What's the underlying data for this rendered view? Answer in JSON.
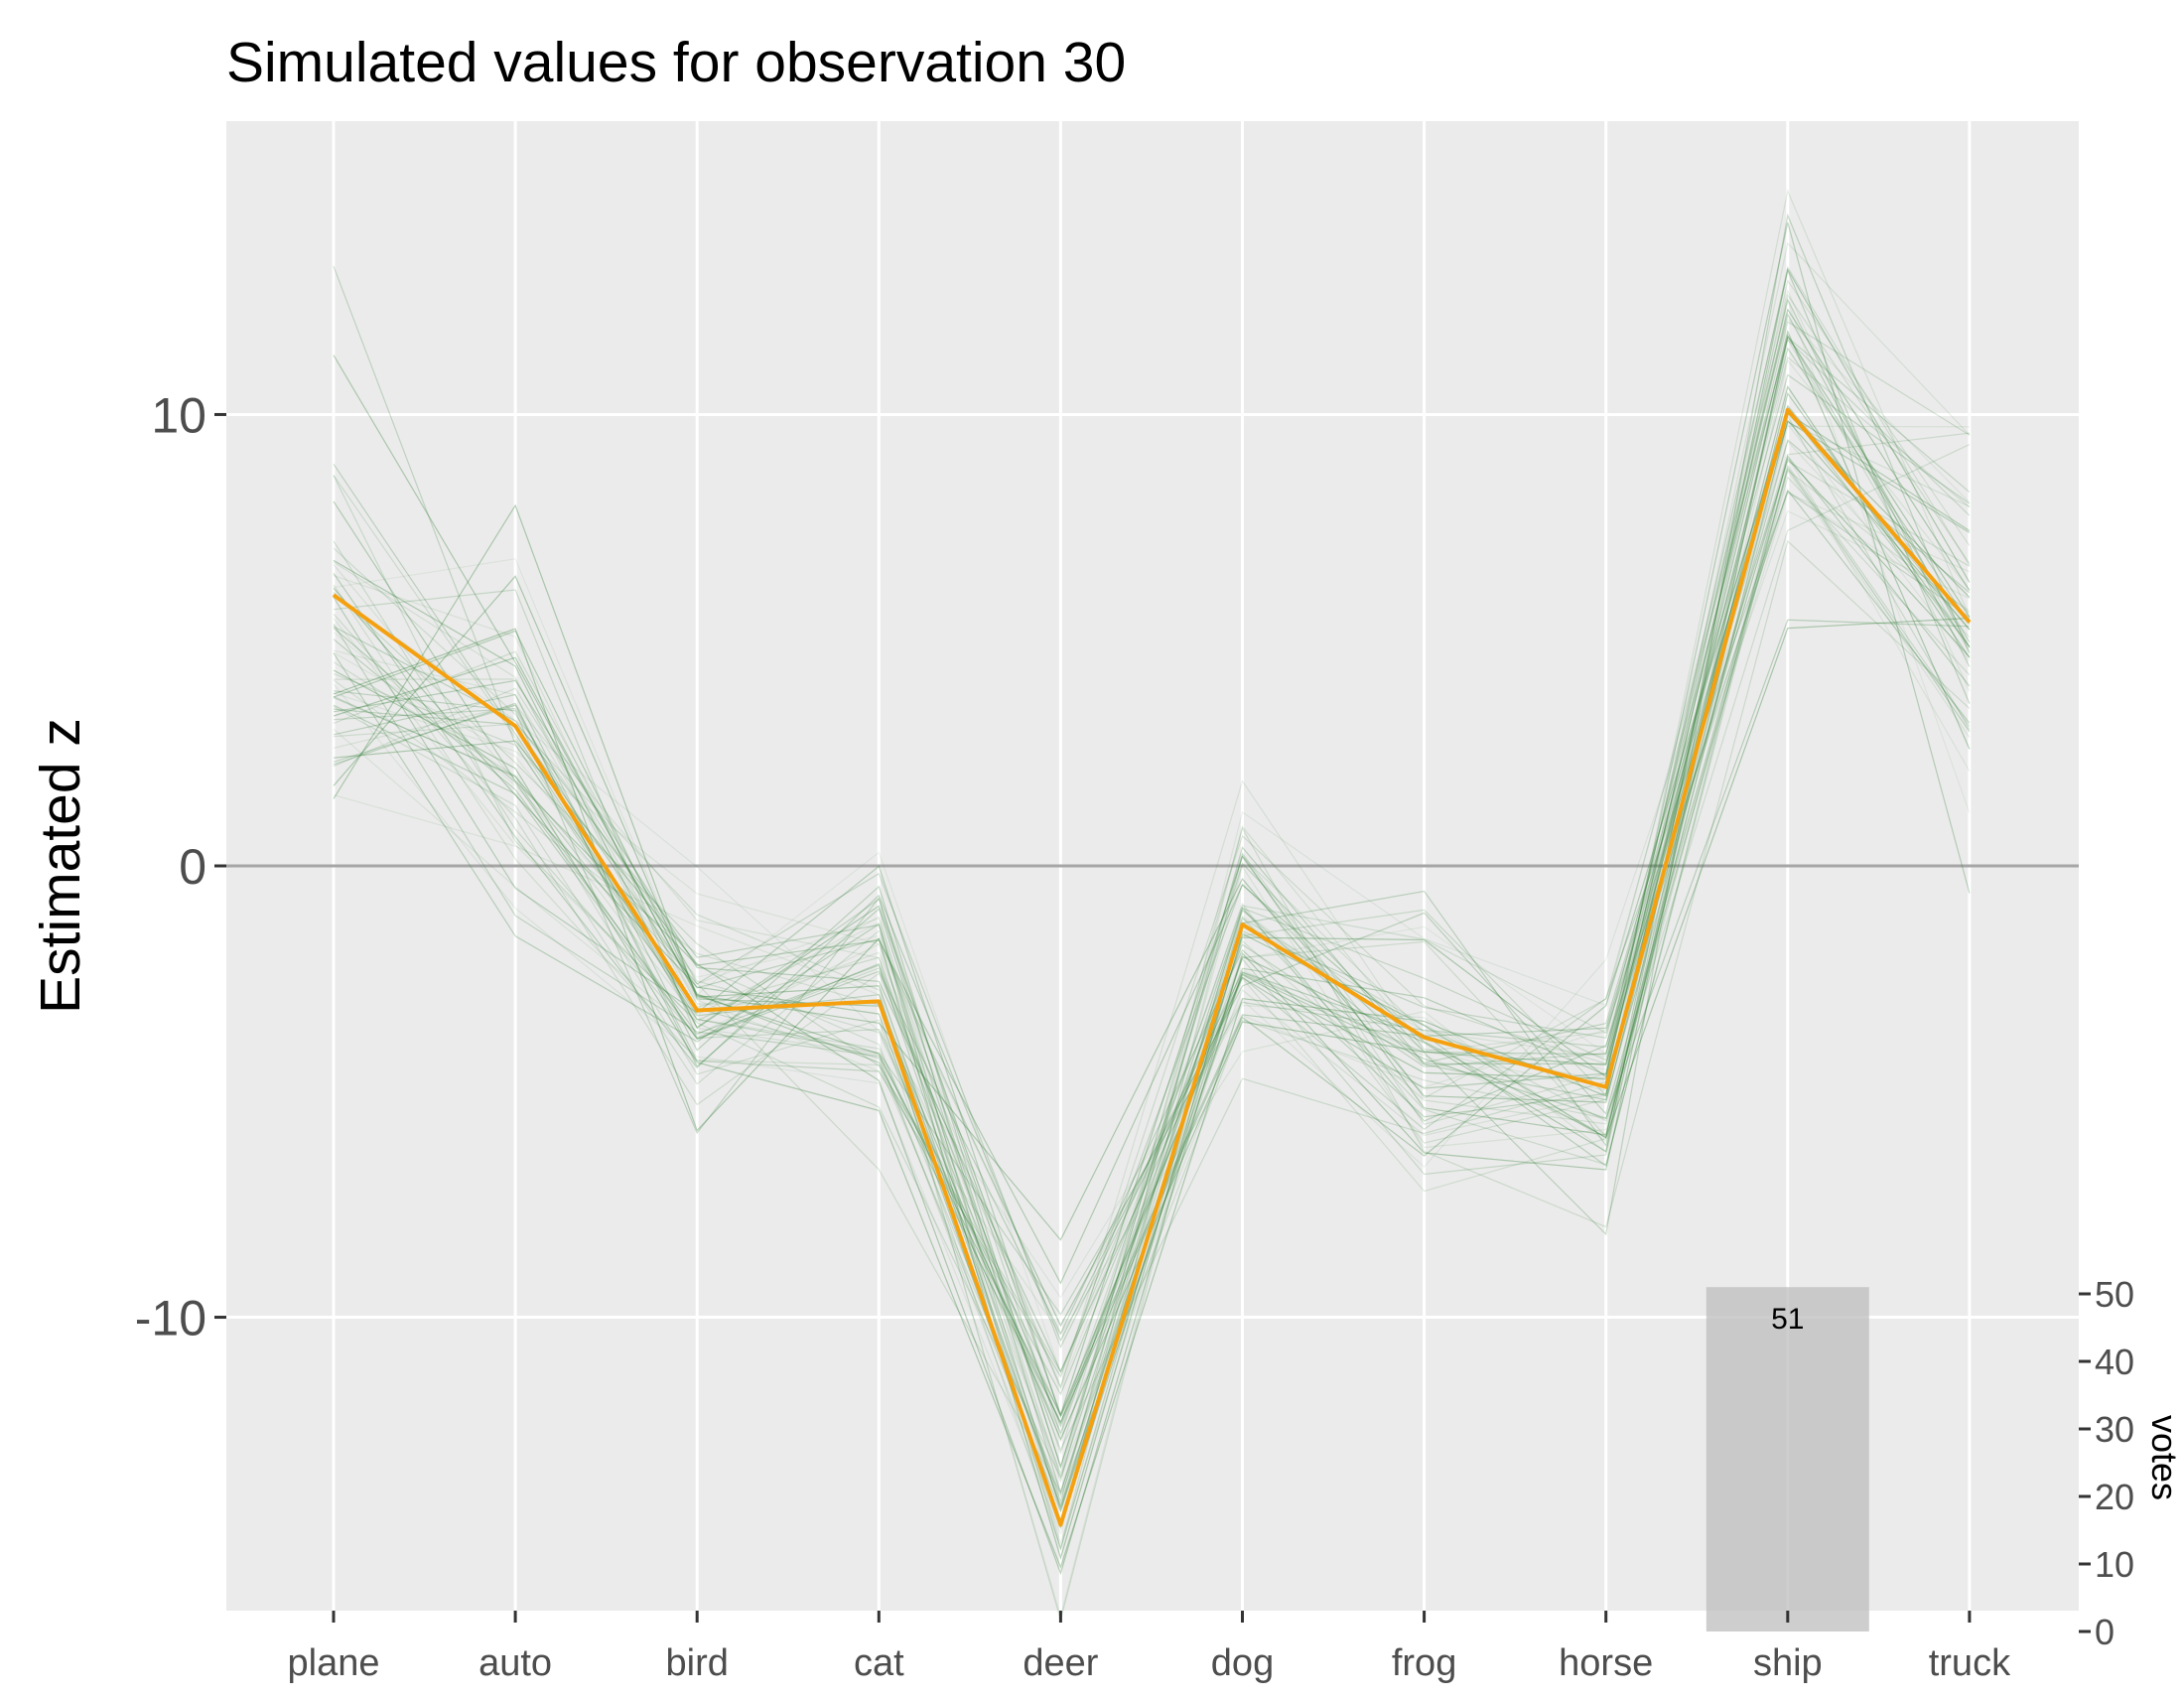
{
  "chart_data": {
    "type": "line",
    "title": "Simulated values for observation 30",
    "ylabel": "Estimated z",
    "xlabel": "",
    "categories": [
      "plane",
      "auto",
      "bird",
      "cat",
      "deer",
      "dog",
      "frog",
      "horse",
      "ship",
      "truck"
    ],
    "ylim": [
      -16.5,
      16.5
    ],
    "yticks": [
      -10,
      0,
      10
    ],
    "ytick_labels": [
      "-10",
      "0",
      "10"
    ],
    "grid": true,
    "zero_line": true,
    "series": [
      {
        "values": [
          6.0,
          3.1,
          -3.2,
          -3.0,
          -14.6,
          -1.3,
          -3.8,
          -4.9,
          10.1,
          5.4
        ],
        "color": "#f5a10f"
      }
    ],
    "simulations": {
      "count": 60,
      "color": "#2e7d32",
      "center": [
        4.8,
        2.6,
        -3.2,
        -2.9,
        -12.5,
        -1.5,
        -4.2,
        -5.1,
        10.4,
        5.8
      ],
      "spread": [
        2.2,
        1.9,
        1.2,
        1.4,
        1.9,
        1.5,
        1.5,
        1.4,
        2.0,
        1.9
      ]
    },
    "votes": {
      "label": "votes",
      "category": "ship",
      "value": 51,
      "value_label": "51",
      "ylim": [
        0,
        52
      ],
      "ticks": [
        0,
        10,
        20,
        30,
        40,
        50
      ],
      "tick_labels": [
        "0",
        "10",
        "20",
        "30",
        "40",
        "50"
      ],
      "bar_color": "#bdbdbd"
    },
    "colors": {
      "panel": "#ebebeb",
      "gridline": "#ffffff",
      "zero_line": "#a6a6a6"
    }
  }
}
